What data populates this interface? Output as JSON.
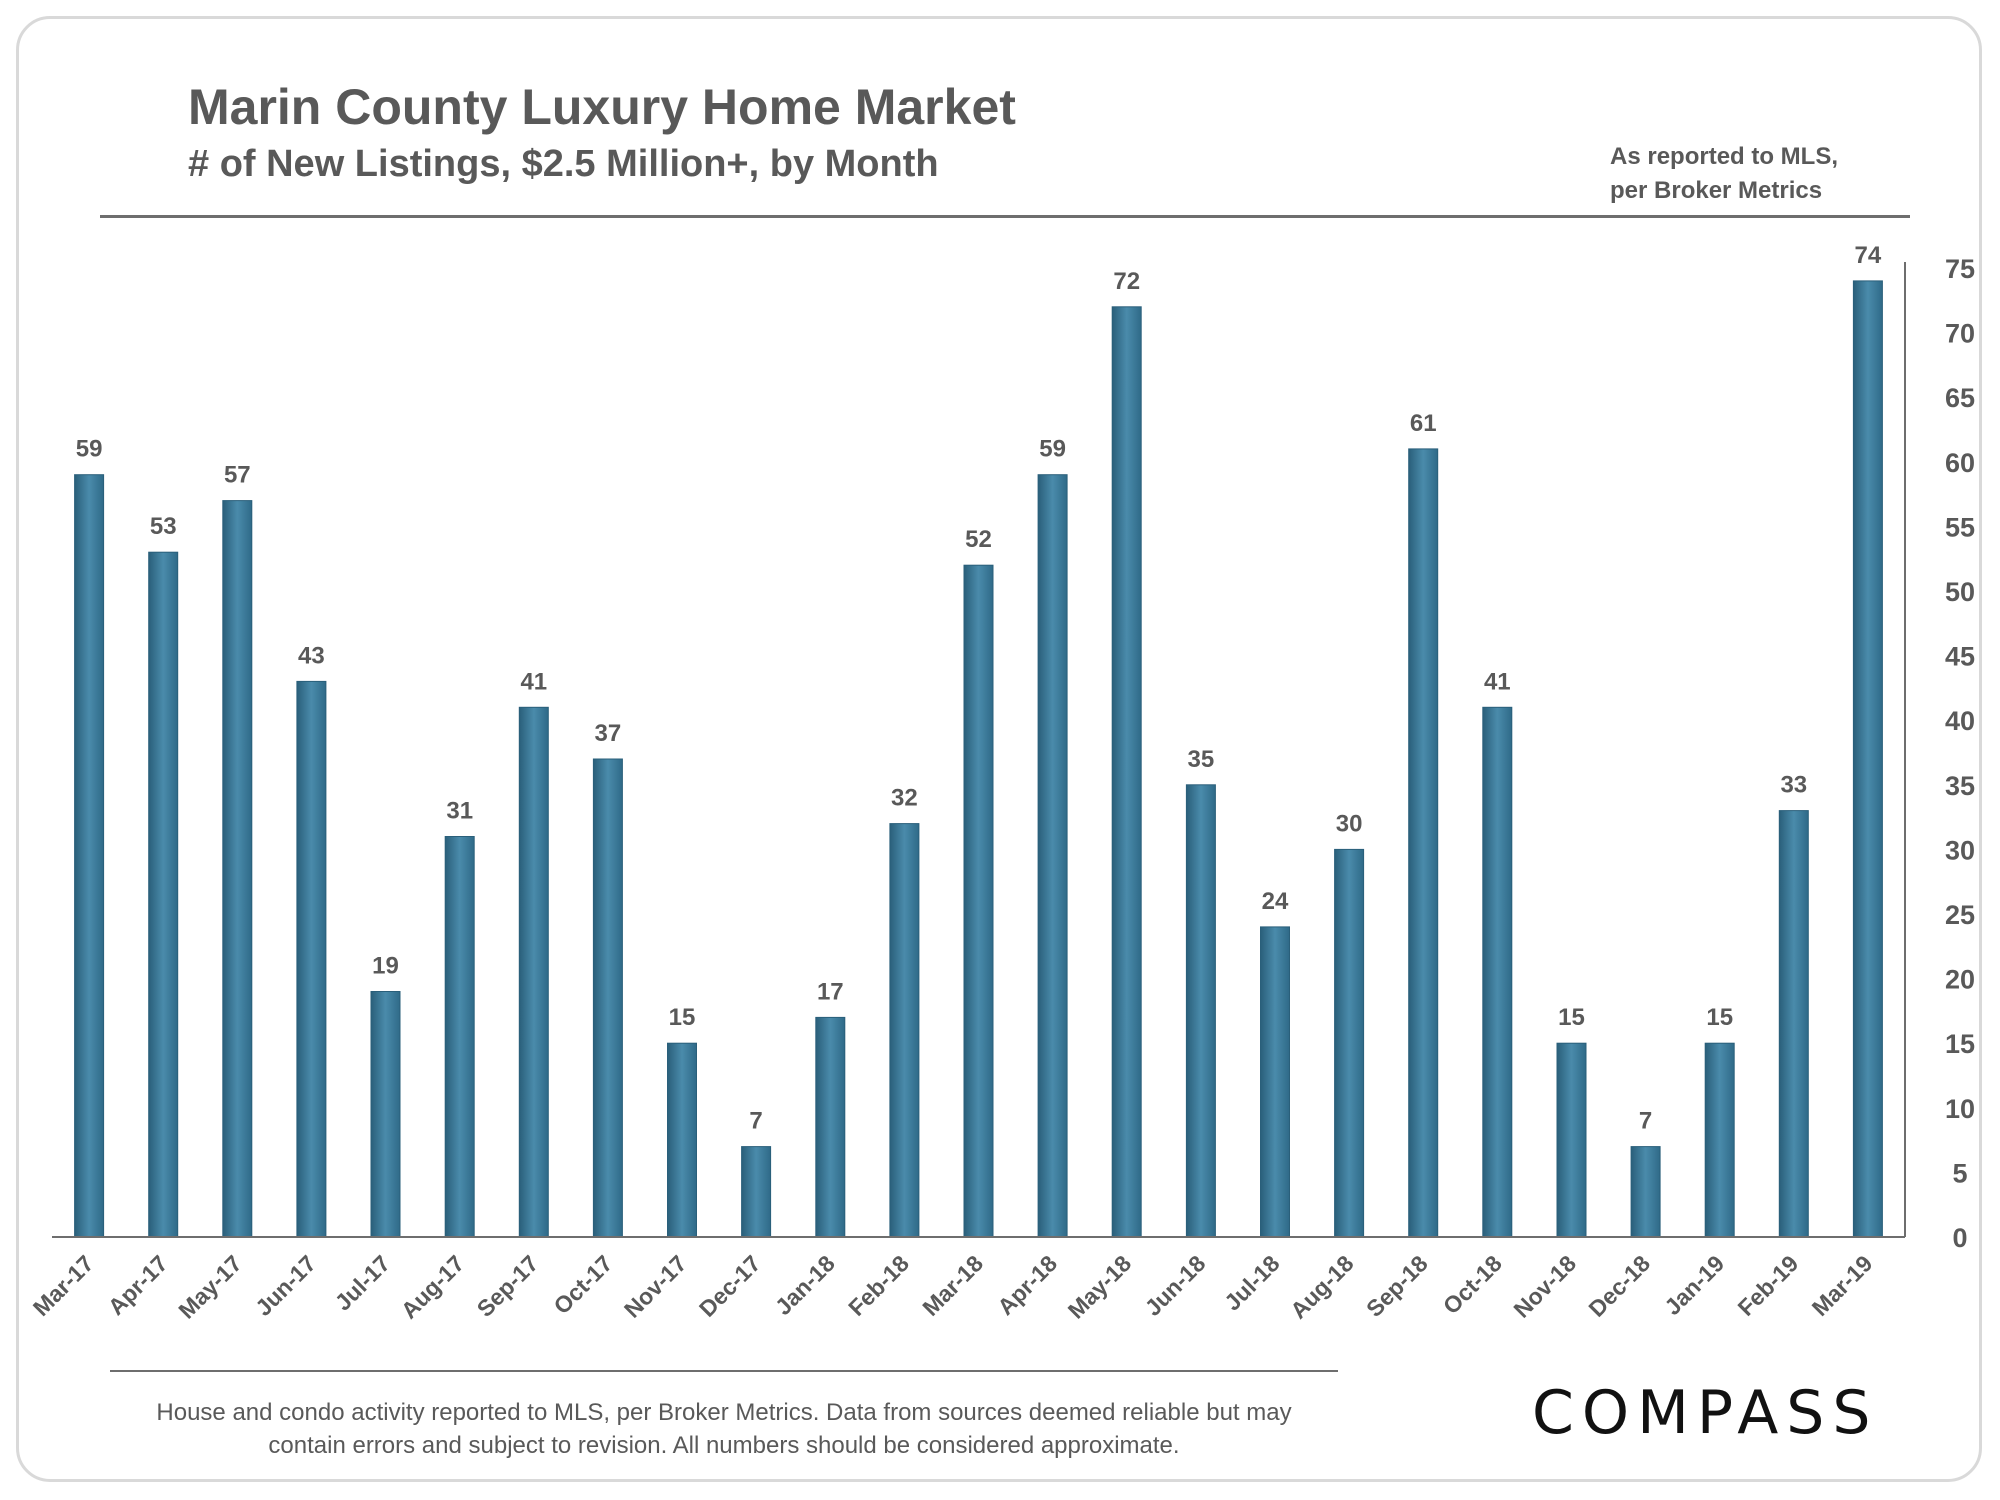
{
  "header": {
    "title": "Marin County Luxury Home Market",
    "subtitle": "# of New Listings, $2.5 Million+, by Month",
    "source_note_line1": "As reported to MLS,",
    "source_note_line2": "per Broker Metrics"
  },
  "footer": {
    "note_line1": "House and condo activity reported to MLS, per Broker Metrics. Data from sources deemed reliable but may",
    "note_line2": "contain errors and subject to revision. All numbers should be considered approximate.",
    "logo": "COMPASS"
  },
  "colors": {
    "bar": "#3d7d9e",
    "bar_dark": "#2a5f7a",
    "text": "#595959",
    "axis": "#6e6e6e"
  },
  "chart_data": {
    "type": "bar",
    "title": "Marin County Luxury Home Market",
    "subtitle": "# of New Listings, $2.5 Million+, by Month",
    "categories": [
      "Mar-17",
      "Apr-17",
      "May-17",
      "Jun-17",
      "Jul-17",
      "Aug-17",
      "Sep-17",
      "Oct-17",
      "Nov-17",
      "Dec-17",
      "Jan-18",
      "Feb-18",
      "Mar-18",
      "Apr-18",
      "May-18",
      "Jun-18",
      "Jul-18",
      "Aug-18",
      "Sep-18",
      "Oct-18",
      "Nov-18",
      "Dec-18",
      "Jan-19",
      "Feb-19",
      "Mar-19"
    ],
    "values": [
      59,
      53,
      57,
      43,
      19,
      31,
      41,
      37,
      15,
      7,
      17,
      32,
      52,
      59,
      72,
      35,
      24,
      30,
      61,
      41,
      15,
      7,
      15,
      33,
      74
    ],
    "data_labels": [
      "59",
      "53",
      "57",
      "43",
      "19",
      "31",
      "41",
      "37",
      "15",
      "7",
      "17",
      "32",
      "52",
      "59",
      "72",
      "35",
      "24",
      "30",
      "61",
      "41",
      "15",
      "7",
      "15",
      "33",
      "74"
    ],
    "y_ticks": [
      "0",
      "5",
      "10",
      "15",
      "20",
      "25",
      "30",
      "35",
      "40",
      "45",
      "50",
      "55",
      "60",
      "65",
      "70",
      "75"
    ],
    "ylim": [
      0,
      75
    ],
    "y_axis_side": "right",
    "grid": false,
    "legend": "none"
  }
}
